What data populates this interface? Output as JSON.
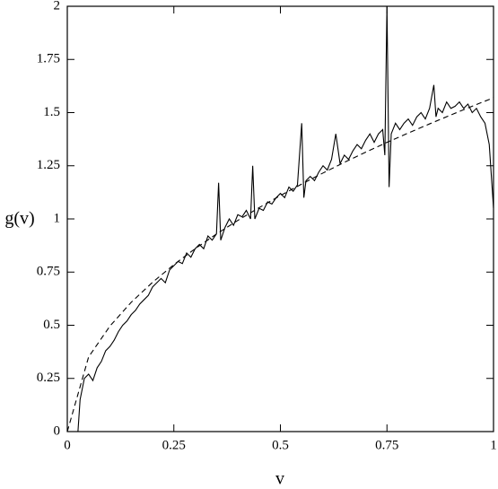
{
  "chart_data": {
    "type": "line",
    "xlabel": "v",
    "ylabel": "g(v)",
    "xlim": [
      0,
      1
    ],
    "ylim": [
      0,
      2
    ],
    "xticks": [
      0,
      0.25,
      0.5,
      0.75,
      1
    ],
    "yticks": [
      0,
      0.25,
      0.5,
      0.75,
      1,
      1.25,
      1.5,
      1.75,
      2
    ],
    "series": [
      {
        "color": "#000000",
        "dash": false,
        "x": [
          0.025,
          0.03,
          0.04,
          0.05,
          0.06,
          0.07,
          0.08,
          0.09,
          0.1,
          0.11,
          0.12,
          0.13,
          0.14,
          0.15,
          0.16,
          0.17,
          0.18,
          0.19,
          0.2,
          0.21,
          0.22,
          0.23,
          0.24,
          0.25,
          0.26,
          0.27,
          0.28,
          0.29,
          0.3,
          0.31,
          0.32,
          0.33,
          0.34,
          0.35,
          0.355,
          0.36,
          0.37,
          0.38,
          0.39,
          0.4,
          0.41,
          0.42,
          0.43,
          0.435,
          0.44,
          0.45,
          0.46,
          0.47,
          0.48,
          0.49,
          0.5,
          0.51,
          0.52,
          0.53,
          0.54,
          0.55,
          0.555,
          0.56,
          0.57,
          0.58,
          0.59,
          0.6,
          0.61,
          0.62,
          0.63,
          0.64,
          0.65,
          0.66,
          0.67,
          0.68,
          0.69,
          0.7,
          0.71,
          0.72,
          0.73,
          0.74,
          0.745,
          0.75,
          0.755,
          0.76,
          0.77,
          0.78,
          0.79,
          0.8,
          0.81,
          0.82,
          0.83,
          0.84,
          0.85,
          0.86,
          0.865,
          0.87,
          0.88,
          0.89,
          0.9,
          0.91,
          0.92,
          0.93,
          0.94,
          0.95,
          0.96,
          0.97,
          0.98,
          0.99,
          1.0
        ],
        "values": [
          0,
          0.15,
          0.25,
          0.27,
          0.24,
          0.3,
          0.33,
          0.38,
          0.4,
          0.43,
          0.47,
          0.5,
          0.52,
          0.55,
          0.57,
          0.6,
          0.62,
          0.64,
          0.68,
          0.7,
          0.72,
          0.7,
          0.76,
          0.78,
          0.8,
          0.79,
          0.84,
          0.82,
          0.86,
          0.88,
          0.86,
          0.92,
          0.9,
          0.93,
          1.17,
          0.9,
          0.96,
          1.0,
          0.97,
          1.02,
          1.01,
          1.04,
          1.0,
          1.25,
          1.0,
          1.05,
          1.04,
          1.08,
          1.07,
          1.1,
          1.12,
          1.1,
          1.15,
          1.13,
          1.16,
          1.45,
          1.1,
          1.18,
          1.2,
          1.18,
          1.22,
          1.25,
          1.23,
          1.28,
          1.4,
          1.26,
          1.3,
          1.28,
          1.32,
          1.35,
          1.33,
          1.37,
          1.4,
          1.36,
          1.4,
          1.42,
          1.3,
          2.0,
          1.15,
          1.4,
          1.45,
          1.42,
          1.45,
          1.47,
          1.44,
          1.48,
          1.5,
          1.47,
          1.52,
          1.63,
          1.48,
          1.52,
          1.5,
          1.55,
          1.52,
          1.53,
          1.55,
          1.52,
          1.54,
          1.5,
          1.52,
          1.48,
          1.45,
          1.35,
          1.05
        ]
      },
      {
        "color": "#000000",
        "dash": true,
        "x": [
          0,
          0.05,
          0.1,
          0.15,
          0.2,
          0.25,
          0.3,
          0.35,
          0.4,
          0.45,
          0.5,
          0.55,
          0.6,
          0.65,
          0.7,
          0.75,
          0.8,
          0.85,
          0.9,
          0.95,
          1.0
        ],
        "values": [
          0,
          0.351,
          0.496,
          0.608,
          0.702,
          0.785,
          0.86,
          0.929,
          0.993,
          1.053,
          1.11,
          1.164,
          1.216,
          1.266,
          1.314,
          1.36,
          1.404,
          1.447,
          1.489,
          1.53,
          1.57
        ]
      }
    ]
  }
}
